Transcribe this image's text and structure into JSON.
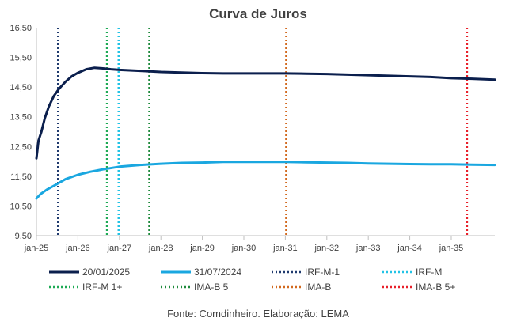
{
  "chart_data": {
    "type": "line",
    "title": "Curva de Juros",
    "source": "Fonte: Comdinheiro. Elaboração: LEMA",
    "xlabel": "",
    "ylabel": "",
    "ylim": [
      9.5,
      16.5
    ],
    "y_ticks": [
      "16,50",
      "15,50",
      "14,50",
      "13,50",
      "12,50",
      "11,50",
      "10,50",
      "9,50"
    ],
    "y_tick_values": [
      16.5,
      15.5,
      14.5,
      13.5,
      12.5,
      11.5,
      10.5,
      9.5
    ],
    "xlim": [
      2025.0,
      2036.05
    ],
    "x_ticks": [
      "jan-25",
      "jan-26",
      "jan-27",
      "jan-28",
      "jan-29",
      "jan-30",
      "jan-31",
      "jan-32",
      "jan-33",
      "jan-34",
      "jan-35"
    ],
    "x_tick_values": [
      2025,
      2026,
      2027,
      2028,
      2029,
      2030,
      2031,
      2032,
      2033,
      2034,
      2035
    ],
    "grid": false,
    "legend_position": "bottom",
    "series": [
      {
        "name": "20/01/2025",
        "color": "#0b1f4d",
        "width": 3,
        "x": [
          2025.0,
          2025.05,
          2025.12,
          2025.2,
          2025.3,
          2025.42,
          2025.55,
          2025.7,
          2025.85,
          2026.0,
          2026.2,
          2026.4,
          2026.6,
          2026.8,
          2027.0,
          2027.3,
          2027.6,
          2028.0,
          2028.5,
          2029.0,
          2029.5,
          2030.0,
          2030.5,
          2031.0,
          2031.5,
          2032.0,
          2032.5,
          2033.0,
          2033.5,
          2034.0,
          2034.5,
          2035.0,
          2035.5,
          2036.05
        ],
        "y": [
          12.1,
          12.7,
          13.0,
          13.45,
          13.85,
          14.2,
          14.45,
          14.68,
          14.86,
          14.98,
          15.1,
          15.15,
          15.13,
          15.1,
          15.08,
          15.06,
          15.04,
          15.01,
          14.99,
          14.97,
          14.96,
          14.96,
          14.96,
          14.96,
          14.95,
          14.94,
          14.92,
          14.9,
          14.88,
          14.86,
          14.84,
          14.8,
          14.78,
          14.75
        ]
      },
      {
        "name": "31/07/2024",
        "color": "#1aa7e0",
        "width": 3,
        "x": [
          2025.0,
          2025.1,
          2025.25,
          2025.45,
          2025.7,
          2026.0,
          2026.3,
          2026.6,
          2027.0,
          2027.5,
          2028.0,
          2028.5,
          2029.0,
          2029.5,
          2030.0,
          2030.5,
          2031.0,
          2031.5,
          2032.0,
          2032.5,
          2033.0,
          2033.5,
          2034.0,
          2034.5,
          2035.0,
          2035.5,
          2036.05
        ],
        "y": [
          10.75,
          10.9,
          11.05,
          11.2,
          11.4,
          11.55,
          11.65,
          11.73,
          11.82,
          11.88,
          11.92,
          11.95,
          11.96,
          11.98,
          11.98,
          11.98,
          11.98,
          11.97,
          11.96,
          11.95,
          11.93,
          11.92,
          11.91,
          11.9,
          11.9,
          11.89,
          11.88
        ]
      }
    ],
    "reference_lines": [
      {
        "name": "IRF-M-1",
        "color": "#1f3a6e",
        "x": 2025.52
      },
      {
        "name": "IRF-M",
        "color": "#22c3e6",
        "x": 2026.98
      },
      {
        "name": "IRF-M 1+",
        "color": "#1daa55",
        "x": 2026.7
      },
      {
        "name": "IMA-B 5",
        "color": "#1e8a3c",
        "x": 2027.72
      },
      {
        "name": "IMA-B",
        "color": "#d2691e",
        "x": 2031.02
      },
      {
        "name": "IMA-B 5+",
        "color": "#e8202a",
        "x": 2035.38
      }
    ],
    "legend": [
      {
        "label": "20/01/2025",
        "color": "#0b1f4d",
        "style": "solid"
      },
      {
        "label": "31/07/2024",
        "color": "#1aa7e0",
        "style": "solid"
      },
      {
        "label": "IRF-M-1",
        "color": "#1f3a6e",
        "style": "dotted"
      },
      {
        "label": "IRF-M",
        "color": "#22c3e6",
        "style": "dotted"
      },
      {
        "label": "IRF-M 1+",
        "color": "#1daa55",
        "style": "dotted"
      },
      {
        "label": "IMA-B 5",
        "color": "#1e8a3c",
        "style": "dotted"
      },
      {
        "label": "IMA-B",
        "color": "#d2691e",
        "style": "dotted"
      },
      {
        "label": "IMA-B 5+",
        "color": "#e8202a",
        "style": "dotted"
      }
    ]
  }
}
